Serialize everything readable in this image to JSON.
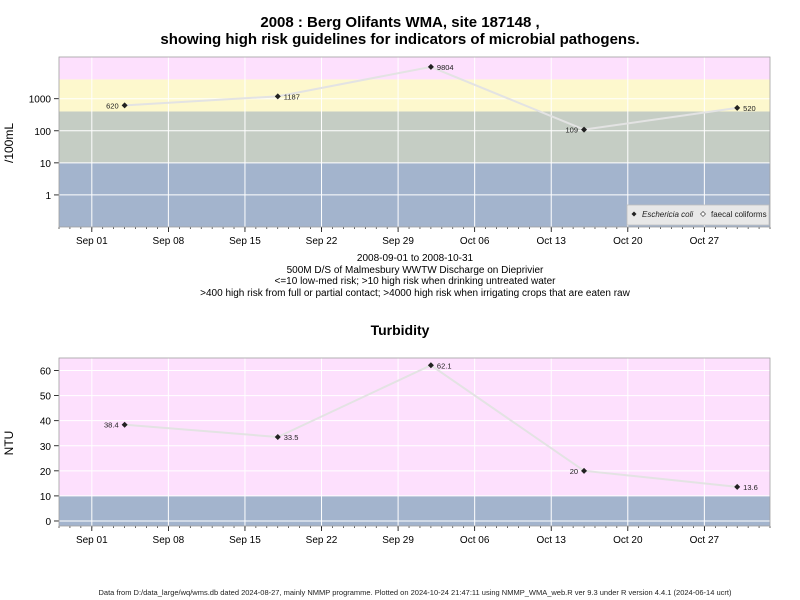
{
  "charts": {
    "micro": {
      "title_line1": "2008 : Berg Olifants WMA, site 187148 ,",
      "title_line2": "showing high risk guidelines for indicators of microbial pathogens.",
      "ylabel": "/100mL",
      "caption": [
        "2008-09-01 to 2008-10-31",
        "500M D/S of Malmesbury WWTW Discharge on Dieprivier",
        "<=10 low-med risk; >10 high risk when drinking untreated water",
        ">400 high risk from full or partial contact; >4000 high risk when irrigating crops that are eaten raw"
      ],
      "legend": [
        {
          "label": "Eschericia coli",
          "marker": "filled-diamond",
          "italic": true
        },
        {
          "label": "faecal coliforms",
          "marker": "open-diamond",
          "italic": false
        }
      ]
    },
    "turb": {
      "title": "Turbidity",
      "ylabel": "NTU"
    }
  },
  "chart_data": [
    {
      "type": "line",
      "title": "2008 : Berg Olifants WMA, site 187148 , showing high risk guidelines for indicators of microbial pathogens.",
      "ylabel": "/100mL",
      "yscale": "log10",
      "ylim": [
        0.1,
        20000
      ],
      "xlim": [
        "2008-08-29",
        "2008-11-02"
      ],
      "x_ticks": [
        "Sep 01",
        "Sep 08",
        "Sep 15",
        "Sep 22",
        "Sep 29",
        "Oct 06",
        "Oct 13",
        "Oct 20",
        "Oct 27"
      ],
      "y_ticks": [
        "1",
        "10",
        "100",
        "1000"
      ],
      "grid": true,
      "legend_position": "bottom-right",
      "bands": [
        {
          "from": 0.1,
          "to": 10,
          "color": "#a3b4cd"
        },
        {
          "from": 10,
          "to": 400,
          "color": "#c5cdc4"
        },
        {
          "from": 400,
          "to": 4000,
          "color": "#fdf8cd"
        },
        {
          "from": 4000,
          "to": 20000,
          "color": "#fde0fd"
        }
      ],
      "series": [
        {
          "name": "Eschericia coli",
          "x": [
            "2008-09-04",
            "2008-09-18",
            "2008-10-02",
            "2008-10-16",
            "2008-10-30"
          ],
          "values": [
            620,
            1187,
            9804,
            109,
            520
          ],
          "labels": [
            "620",
            "1187",
            "9804",
            "109",
            "520"
          ]
        }
      ]
    },
    {
      "type": "line",
      "title": "Turbidity",
      "ylabel": "NTU",
      "ylim": [
        -2,
        65
      ],
      "xlim": [
        "2008-08-29",
        "2008-11-02"
      ],
      "x_ticks": [
        "Sep 01",
        "Sep 08",
        "Sep 15",
        "Sep 22",
        "Sep 29",
        "Oct 06",
        "Oct 13",
        "Oct 20",
        "Oct 27"
      ],
      "y_ticks": [
        "0",
        "10",
        "20",
        "30",
        "40",
        "50",
        "60"
      ],
      "grid": true,
      "bands": [
        {
          "from": -2,
          "to": 10,
          "color": "#a3b4cd"
        },
        {
          "from": 10,
          "to": 65,
          "color": "#fde0fd"
        }
      ],
      "series": [
        {
          "x": [
            "2008-09-04",
            "2008-09-18",
            "2008-10-02",
            "2008-10-16",
            "2008-10-30"
          ],
          "values": [
            38.4,
            33.5,
            62.1,
            20,
            13.6
          ],
          "labels": [
            "38.4",
            "33.5",
            "62.1",
            "20",
            "13.6"
          ]
        }
      ]
    }
  ],
  "footer": "Data from D:/data_large/wq/wms.db dated 2024-08-27, mainly NMMP programme. Plotted on 2024-10-24 21:47:11 using NMMP_WMA_web.R ver 9.3 under R version 4.4.1 (2024-06-14 ucrt)"
}
